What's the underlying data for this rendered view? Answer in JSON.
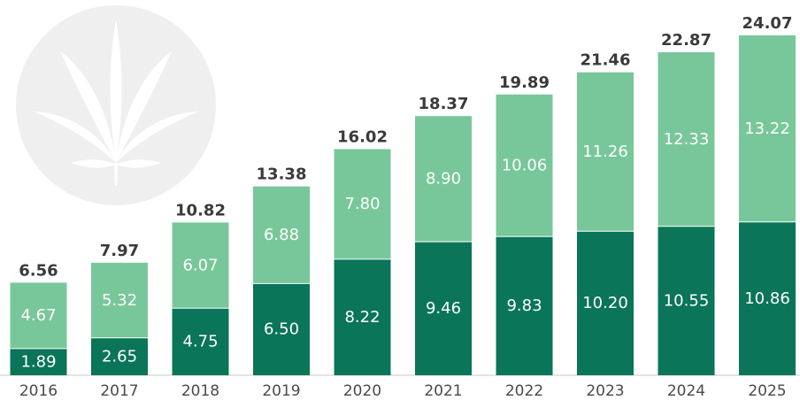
{
  "colors": {
    "bottom_series": "#0a7558",
    "top_series": "#78c79a",
    "axis": "#c8c8c8",
    "logo_circle": "#efefef"
  },
  "logo": {
    "icon": "cannabis-leaf-icon"
  },
  "chart_data": {
    "type": "bar",
    "stacked": true,
    "title": "",
    "xlabel": "",
    "ylabel": "",
    "ylim": [
      0,
      25
    ],
    "grid": false,
    "categories": [
      "2016",
      "2017",
      "2018",
      "2019",
      "2020",
      "2021",
      "2022",
      "2023",
      "2024",
      "2025"
    ],
    "series": [
      {
        "values": [
          1.89,
          2.65,
          4.75,
          6.5,
          8.22,
          9.46,
          9.83,
          10.2,
          10.55,
          10.86
        ]
      },
      {
        "values": [
          4.67,
          5.32,
          6.07,
          6.88,
          7.8,
          8.9,
          10.06,
          11.26,
          12.33,
          13.22
        ]
      }
    ],
    "totals": [
      6.56,
      7.97,
      10.82,
      13.38,
      16.02,
      18.37,
      19.89,
      21.46,
      22.87,
      24.07
    ]
  }
}
